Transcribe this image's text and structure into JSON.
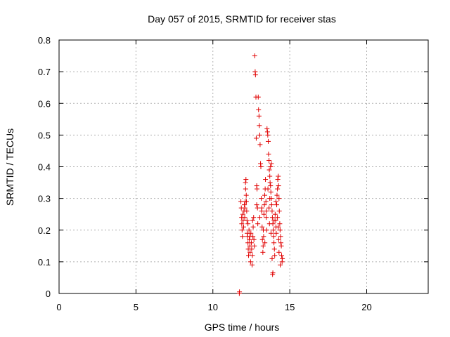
{
  "chart_data": {
    "type": "scatter",
    "title": "Day 057 of 2015, SRMTID for receiver stas",
    "xlabel": "GPS time / hours",
    "ylabel": "SRMTID / TECUs",
    "xlim": [
      0,
      24
    ],
    "ylim": [
      0,
      0.8
    ],
    "xticks": [
      0,
      5,
      10,
      15,
      20
    ],
    "yticks": [
      0,
      0.1,
      0.2,
      0.3,
      0.4,
      0.5,
      0.6,
      0.7,
      0.8
    ],
    "xtick_labels": [
      "0",
      "5",
      "10",
      "15",
      "20"
    ],
    "ytick_labels": [
      "0",
      "0.1",
      "0.2",
      "0.3",
      "0.4",
      "0.5",
      "0.6",
      "0.7",
      "0.8"
    ],
    "grid": true,
    "marker": "+",
    "color": "#e00000",
    "series": [
      {
        "name": "stas",
        "points": [
          [
            11.72,
            0.0
          ],
          [
            11.73,
            0.005
          ],
          [
            11.82,
            0.29
          ],
          [
            11.85,
            0.27
          ],
          [
            11.87,
            0.24
          ],
          [
            11.88,
            0.22
          ],
          [
            11.9,
            0.2
          ],
          [
            11.92,
            0.18
          ],
          [
            11.95,
            0.25
          ],
          [
            11.97,
            0.23
          ],
          [
            12.0,
            0.21
          ],
          [
            12.02,
            0.26
          ],
          [
            12.05,
            0.28
          ],
          [
            12.07,
            0.24
          ],
          [
            12.08,
            0.27
          ],
          [
            12.1,
            0.29
          ],
          [
            12.12,
            0.35
          ],
          [
            12.13,
            0.33
          ],
          [
            12.15,
            0.36
          ],
          [
            12.17,
            0.31
          ],
          [
            12.18,
            0.29
          ],
          [
            12.2,
            0.26
          ],
          [
            12.22,
            0.23
          ],
          [
            12.23,
            0.19
          ],
          [
            12.25,
            0.18
          ],
          [
            12.28,
            0.16
          ],
          [
            12.3,
            0.14
          ],
          [
            12.32,
            0.12
          ],
          [
            12.35,
            0.2
          ],
          [
            12.37,
            0.17
          ],
          [
            12.4,
            0.15
          ],
          [
            12.42,
            0.13
          ],
          [
            12.45,
            0.1
          ],
          [
            12.47,
            0.19
          ],
          [
            12.5,
            0.16
          ],
          [
            12.52,
            0.14
          ],
          [
            12.55,
            0.09
          ],
          [
            12.57,
            0.12
          ],
          [
            12.6,
            0.18
          ],
          [
            12.62,
            0.21
          ],
          [
            12.65,
            0.24
          ],
          [
            12.67,
            0.17
          ],
          [
            12.7,
            0.15
          ],
          [
            12.72,
            0.75
          ],
          [
            12.75,
            0.7
          ],
          [
            12.77,
            0.69
          ],
          [
            12.8,
            0.62
          ],
          [
            12.82,
            0.49
          ],
          [
            12.85,
            0.34
          ],
          [
            12.87,
            0.33
          ],
          [
            12.9,
            0.27
          ],
          [
            12.92,
            0.22
          ],
          [
            12.95,
            0.62
          ],
          [
            12.97,
            0.58
          ],
          [
            13.0,
            0.56
          ],
          [
            13.02,
            0.53
          ],
          [
            13.05,
            0.5
          ],
          [
            13.07,
            0.47
          ],
          [
            13.1,
            0.41
          ],
          [
            13.12,
            0.4
          ],
          [
            13.15,
            0.3
          ],
          [
            13.17,
            0.26
          ],
          [
            13.2,
            0.21
          ],
          [
            13.22,
            0.17
          ],
          [
            13.25,
            0.13
          ],
          [
            13.27,
            0.15
          ],
          [
            13.3,
            0.18
          ],
          [
            13.32,
            0.25
          ],
          [
            13.35,
            0.28
          ],
          [
            13.37,
            0.31
          ],
          [
            13.4,
            0.33
          ],
          [
            13.42,
            0.36
          ],
          [
            13.45,
            0.29
          ],
          [
            13.47,
            0.24
          ],
          [
            13.5,
            0.2
          ],
          [
            13.52,
            0.52
          ],
          [
            13.55,
            0.51
          ],
          [
            13.57,
            0.5
          ],
          [
            13.6,
            0.48
          ],
          [
            13.62,
            0.44
          ],
          [
            13.65,
            0.42
          ],
          [
            13.67,
            0.39
          ],
          [
            13.7,
            0.37
          ],
          [
            13.72,
            0.35
          ],
          [
            13.75,
            0.34
          ],
          [
            13.77,
            0.32
          ],
          [
            13.8,
            0.3
          ],
          [
            13.82,
            0.28
          ],
          [
            13.85,
            0.26
          ],
          [
            13.87,
            0.24
          ],
          [
            13.9,
            0.22
          ],
          [
            13.92,
            0.2
          ],
          [
            13.95,
            0.18
          ],
          [
            13.97,
            0.16
          ],
          [
            14.0,
            0.14
          ],
          [
            14.02,
            0.12
          ],
          [
            13.88,
            0.06
          ],
          [
            13.9,
            0.065
          ],
          [
            13.85,
            0.11
          ],
          [
            13.8,
            0.41
          ],
          [
            13.75,
            0.4
          ],
          [
            13.7,
            0.3
          ],
          [
            13.65,
            0.27
          ],
          [
            14.05,
            0.25
          ],
          [
            14.08,
            0.23
          ],
          [
            14.1,
            0.21
          ],
          [
            14.12,
            0.19
          ],
          [
            14.15,
            0.28
          ],
          [
            14.17,
            0.31
          ],
          [
            14.2,
            0.33
          ],
          [
            14.22,
            0.36
          ],
          [
            14.25,
            0.37
          ],
          [
            14.27,
            0.34
          ],
          [
            14.3,
            0.3
          ],
          [
            14.32,
            0.26
          ],
          [
            14.35,
            0.22
          ],
          [
            14.37,
            0.2
          ],
          [
            14.4,
            0.18
          ],
          [
            14.42,
            0.16
          ],
          [
            14.45,
            0.15
          ],
          [
            14.47,
            0.12
          ],
          [
            14.5,
            0.1
          ],
          [
            14.52,
            0.11
          ],
          [
            14.38,
            0.09
          ],
          [
            14.3,
            0.13
          ],
          [
            14.28,
            0.17
          ],
          [
            14.2,
            0.24
          ],
          [
            12.28,
            0.22
          ],
          [
            12.4,
            0.18
          ],
          [
            12.58,
            0.23
          ],
          [
            12.85,
            0.28
          ],
          [
            13.05,
            0.24
          ],
          [
            13.18,
            0.27
          ],
          [
            13.28,
            0.2
          ],
          [
            13.38,
            0.16
          ],
          [
            13.48,
            0.26
          ],
          [
            13.58,
            0.33
          ],
          [
            13.68,
            0.22
          ],
          [
            13.78,
            0.19
          ],
          [
            13.98,
            0.23
          ],
          [
            14.1,
            0.29
          ],
          [
            14.25,
            0.21
          ]
        ]
      }
    ]
  }
}
